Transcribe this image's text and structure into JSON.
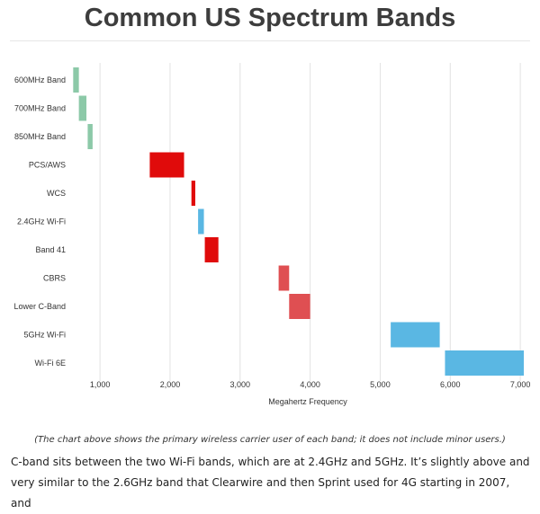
{
  "title": "Common US Spectrum Bands",
  "caption": "(The chart above shows the primary wireless carrier user of each band; it does not include minor users.)",
  "body_lines": [
    "C-band sits between the two Wi-Fi bands, which are at 2.4GHz and 5GHz. It’s slightly above and",
    "very similar to the 2.6GHz band that Clearwire and then Sprint used for 4G starting in 2007, and"
  ],
  "chart_data": {
    "type": "bar",
    "orientation": "horizontal-range",
    "xlabel": "Megahertz Frequency",
    "xlim": [
      600,
      7050
    ],
    "xticks": [
      1000,
      2000,
      3000,
      4000,
      5000,
      6000,
      7000
    ],
    "xtick_labels": [
      "1,000",
      "2,000",
      "3,000",
      "4,000",
      "5,000",
      "6,000",
      "7,000"
    ],
    "grid": "vertical",
    "colors": {
      "green": "#8cc9a8",
      "red": "#e00b0b",
      "blue": "#5ab7e3",
      "lightred": "#df4f52"
    },
    "bands": [
      {
        "label": "600MHz Band",
        "start": 617,
        "end": 698,
        "color": "#8cc9a8"
      },
      {
        "label": "700MHz Band",
        "start": 698,
        "end": 806,
        "color": "#8cc9a8"
      },
      {
        "label": "850MHz Band",
        "start": 824,
        "end": 894,
        "color": "#8cc9a8"
      },
      {
        "label": "PCS/AWS",
        "start": 1710,
        "end": 2200,
        "color": "#e00b0b"
      },
      {
        "label": "WCS",
        "start": 2305,
        "end": 2360,
        "color": "#e00b0b"
      },
      {
        "label": "2.4GHz Wi-Fi",
        "start": 2400,
        "end": 2483,
        "color": "#5ab7e3"
      },
      {
        "label": "Band 41",
        "start": 2496,
        "end": 2690,
        "color": "#e00b0b"
      },
      {
        "label": "CBRS",
        "start": 3550,
        "end": 3700,
        "color": "#df4f52"
      },
      {
        "label": "Lower C-Band",
        "start": 3700,
        "end": 4000,
        "color": "#df4f52"
      },
      {
        "label": "5GHz Wi-Fi",
        "start": 5150,
        "end": 5850,
        "color": "#5ab7e3"
      },
      {
        "label": "Wi-Fi 6E",
        "start": 5925,
        "end": 7125,
        "color": "#5ab7e3"
      }
    ]
  }
}
